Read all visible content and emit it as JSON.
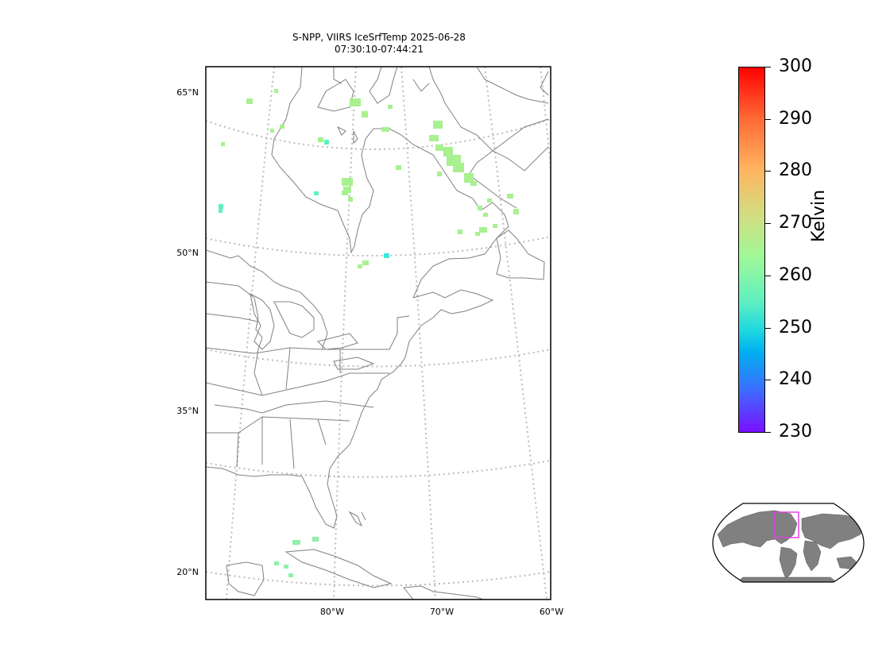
{
  "title": {
    "line1": "S-NPP, VIIRS IceSrfTemp 2025-06-28",
    "line2": "07:30:10-07:44:21"
  },
  "axes": {
    "lat_labels": [
      "65°N",
      "50°N",
      "35°N",
      "20°N"
    ],
    "lon_labels": [
      "80°W",
      "70°W",
      "60°W"
    ]
  },
  "colorbar": {
    "label": "Kelvin",
    "ticks": [
      "300",
      "290",
      "280",
      "270",
      "260",
      "250",
      "240",
      "230"
    ],
    "range": [
      230,
      300
    ],
    "colormap": "rainbow"
  },
  "colors": {
    "coastline": "#808080",
    "graticule": "#bbbbbb",
    "inset_land": "#808080",
    "inset_box": "#e040e0"
  }
}
